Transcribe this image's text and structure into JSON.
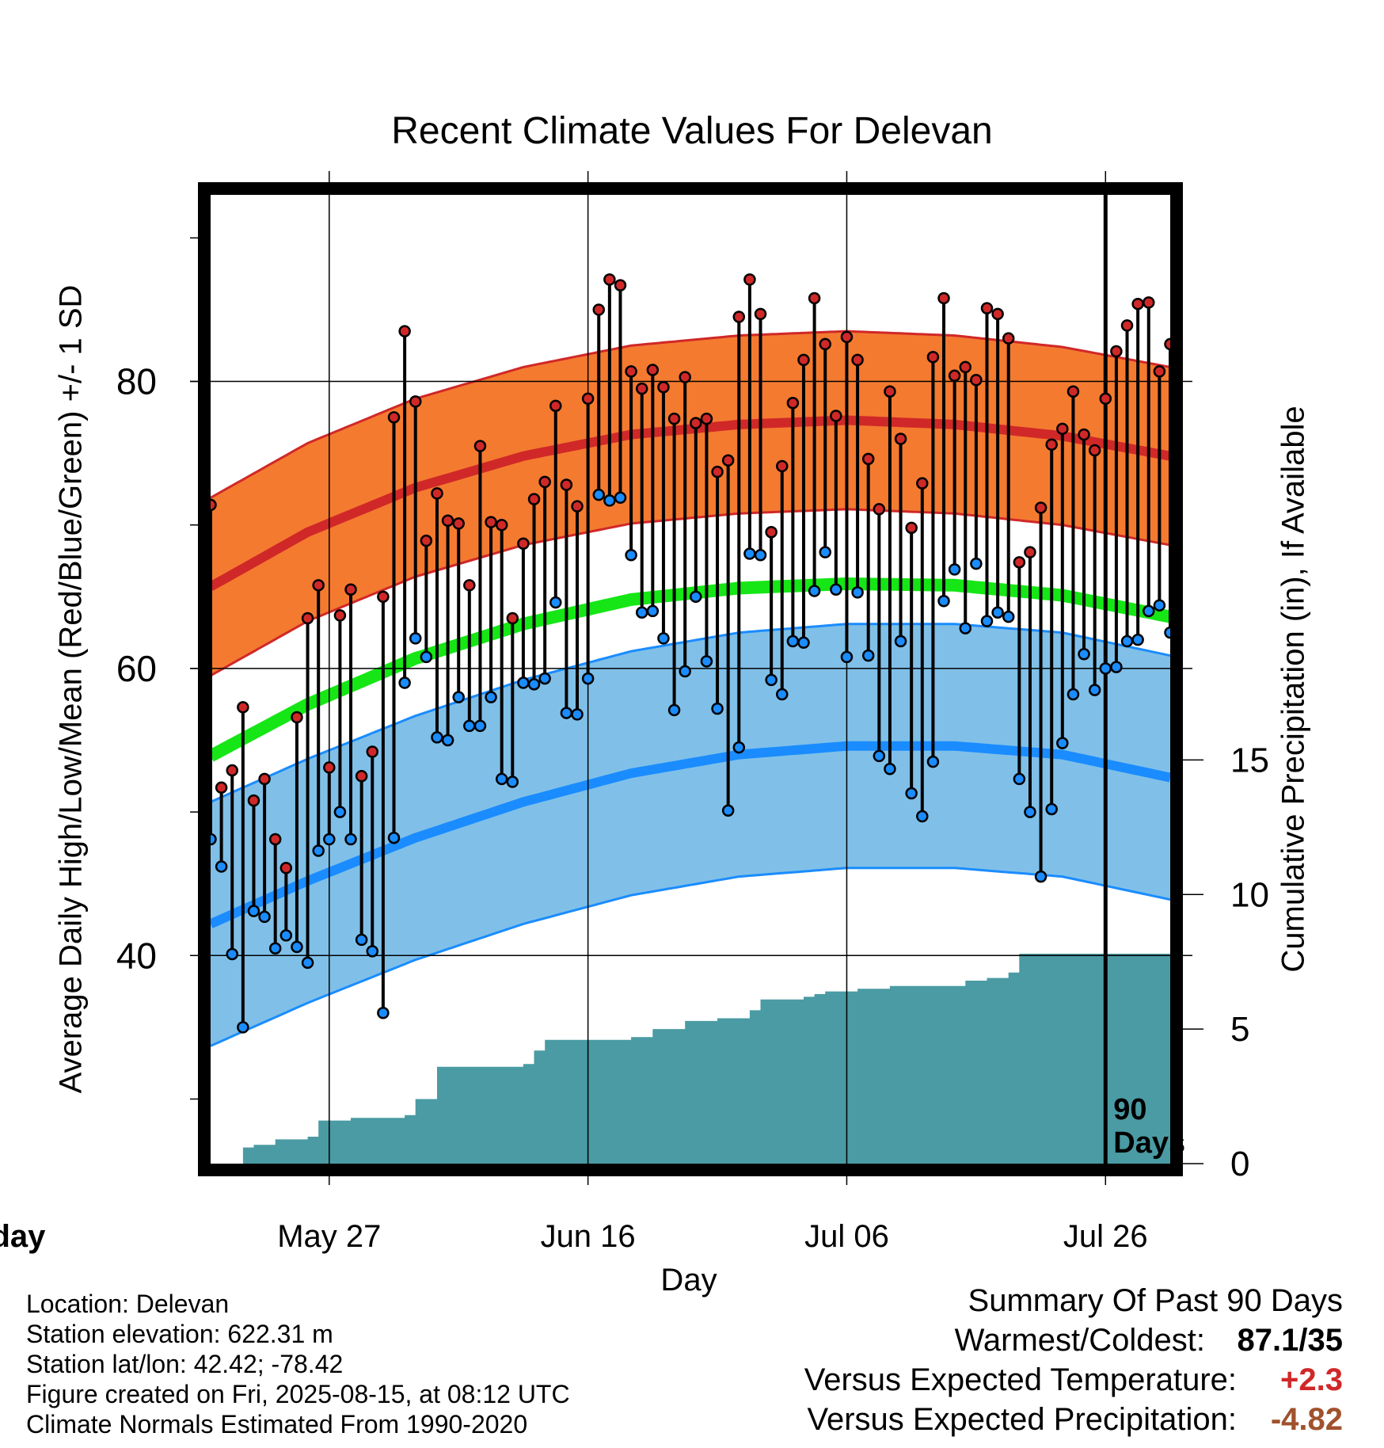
{
  "chart_data": {
    "type": "line",
    "title": "Recent Climate Values For Delevan",
    "xlabel": "Day",
    "ylabel": "Average Daily High/Low/Mean (Red/Blue/Green) +/- 1 SD",
    "y2label": "Cumulative Precipitation (in), If Available",
    "x_ticks": [
      "May 27",
      "Jun 16",
      "Jul 06",
      "Jul 26",
      "Today"
    ],
    "y_ticks": [
      40,
      60,
      80
    ],
    "y2_ticks": [
      0,
      5,
      10,
      15
    ],
    "today_marker": "90 Days",
    "colors": {
      "high_band": "#f47a30",
      "high_mean": "#d02828",
      "low_band": "#80c0e8",
      "low_mean": "#1a8cff",
      "mean": "#16e616",
      "precip": "#4a9ba3",
      "high_dot": "#d02828",
      "low_dot": "#1a8cff"
    },
    "series": [
      {
        "name": "High",
        "x": [
          1,
          2,
          3,
          4,
          5,
          6,
          7,
          8,
          9,
          10,
          11,
          12,
          13,
          14,
          15,
          16,
          17,
          18,
          19,
          20,
          21,
          22,
          23,
          24,
          25,
          26,
          27,
          28,
          29,
          30,
          31,
          32,
          33,
          34,
          35,
          36,
          37,
          38,
          39,
          40,
          41,
          42,
          43,
          44,
          45,
          46,
          47,
          48,
          49,
          50,
          51,
          52,
          53,
          54,
          55,
          56,
          57,
          58,
          59,
          60,
          61,
          62,
          63,
          64,
          65,
          66,
          67,
          68,
          69,
          70,
          71,
          72,
          73,
          74,
          75,
          76,
          77,
          78,
          79,
          80,
          81,
          82,
          83,
          84,
          85,
          86,
          87,
          88,
          89,
          90
        ],
        "values": [
          71.4,
          51.7,
          52.9,
          57.3,
          50.8,
          52.3,
          48.1,
          46.1,
          56.6,
          63.5,
          65.8,
          53.1,
          63.7,
          65.5,
          52.5,
          54.2,
          65.0,
          77.5,
          83.5,
          78.6,
          68.9,
          72.2,
          70.3,
          70.1,
          65.8,
          75.5,
          70.2,
          70.0,
          63.5,
          68.7,
          71.8,
          73.0,
          78.3,
          72.8,
          71.3,
          78.8,
          85.0,
          87.1,
          86.7,
          80.7,
          79.5,
          80.8,
          79.6,
          77.4,
          80.3,
          77.1,
          77.4,
          73.7,
          74.5,
          84.5,
          87.1,
          84.7,
          69.5,
          74.1,
          78.5,
          81.5,
          85.8,
          82.6,
          77.6,
          83.1,
          81.5,
          74.6,
          71.1,
          79.3,
          76.0,
          69.8,
          72.9,
          81.7,
          85.8,
          80.4,
          81.0,
          80.1,
          85.1,
          84.7,
          83.0,
          67.4,
          68.1,
          71.2,
          75.6,
          76.7,
          79.3,
          76.3,
          75.2,
          78.8,
          82.1,
          83.9,
          85.4,
          85.5,
          80.7,
          82.6
        ]
      },
      {
        "name": "Low",
        "x": [
          1,
          2,
          3,
          4,
          5,
          6,
          7,
          8,
          9,
          10,
          11,
          12,
          13,
          14,
          15,
          16,
          17,
          18,
          19,
          20,
          21,
          22,
          23,
          24,
          25,
          26,
          27,
          28,
          29,
          30,
          31,
          32,
          33,
          34,
          35,
          36,
          37,
          38,
          39,
          40,
          41,
          42,
          43,
          44,
          45,
          46,
          47,
          48,
          49,
          50,
          51,
          52,
          53,
          54,
          55,
          56,
          57,
          58,
          59,
          60,
          61,
          62,
          63,
          64,
          65,
          66,
          67,
          68,
          69,
          70,
          71,
          72,
          73,
          74,
          75,
          76,
          77,
          78,
          79,
          80,
          81,
          82,
          83,
          84,
          85,
          86,
          87,
          88,
          89,
          90
        ],
        "values": [
          48.1,
          46.2,
          40.1,
          35.0,
          43.1,
          42.7,
          40.5,
          41.4,
          40.6,
          39.5,
          47.3,
          48.1,
          50.0,
          48.1,
          41.1,
          40.3,
          36.0,
          48.2,
          59.0,
          62.1,
          60.8,
          55.2,
          55.0,
          58.0,
          56.0,
          56.0,
          58.0,
          52.3,
          52.1,
          59.0,
          58.9,
          59.3,
          64.6,
          56.9,
          56.8,
          59.3,
          72.1,
          71.7,
          71.9,
          67.9,
          63.9,
          64.0,
          62.1,
          57.1,
          59.8,
          65.0,
          60.5,
          57.2,
          50.1,
          54.5,
          68.0,
          67.9,
          59.2,
          58.2,
          61.9,
          61.8,
          65.4,
          68.1,
          65.5,
          60.8,
          65.3,
          60.9,
          53.9,
          53.0,
          61.9,
          51.3,
          49.7,
          53.5,
          64.7,
          66.9,
          62.8,
          67.3,
          63.3,
          63.9,
          63.6,
          52.3,
          50.0,
          45.5,
          50.2,
          54.8,
          58.2,
          61.0,
          58.5,
          60.0,
          60.1,
          61.9,
          62.0,
          64.0,
          64.4,
          62.5
        ]
      },
      {
        "name": "Normal High",
        "x": [
          1,
          10,
          20,
          30,
          40,
          50,
          60,
          70,
          80,
          90
        ],
        "values": [
          65.7,
          69.5,
          72.6,
          74.8,
          76.3,
          77.0,
          77.3,
          77.0,
          76.2,
          74.8
        ],
        "sd": 6.2
      },
      {
        "name": "Normal Low",
        "x": [
          1,
          10,
          20,
          30,
          40,
          50,
          60,
          70,
          80,
          90
        ],
        "values": [
          42.2,
          45.2,
          48.2,
          50.7,
          52.7,
          54.0,
          54.6,
          54.6,
          54.0,
          52.4
        ],
        "sd": 8.5
      },
      {
        "name": "Normal Mean",
        "x": [
          1,
          10,
          20,
          30,
          40,
          50,
          60,
          70,
          80,
          90
        ],
        "values": [
          53.9,
          57.5,
          60.7,
          63.1,
          64.8,
          65.6,
          65.9,
          65.8,
          65.1,
          63.6
        ]
      },
      {
        "name": "Cumulative Precipitation",
        "x": [
          1,
          3,
          4,
          5,
          7,
          10,
          11,
          14,
          18,
          19,
          20,
          22,
          30,
          31,
          32,
          35,
          39,
          40,
          42,
          43,
          45,
          46,
          48,
          50,
          51,
          52,
          53,
          56,
          57,
          58,
          59,
          61,
          62,
          63,
          64,
          65,
          66,
          67,
          70,
          71,
          72,
          73,
          75,
          76,
          90
        ],
        "values": [
          0.0,
          0.0,
          0.6,
          0.7,
          0.9,
          1.0,
          1.6,
          1.7,
          1.7,
          1.8,
          2.4,
          3.6,
          3.7,
          4.2,
          4.6,
          4.6,
          4.6,
          4.7,
          5.0,
          5.0,
          5.3,
          5.3,
          5.4,
          5.4,
          5.7,
          6.1,
          6.1,
          6.2,
          6.3,
          6.4,
          6.4,
          6.5,
          6.5,
          6.5,
          6.6,
          6.6,
          6.6,
          6.6,
          6.6,
          6.8,
          6.8,
          6.9,
          7.1,
          7.8,
          7.8
        ]
      }
    ],
    "grid": true,
    "xlim": [
      1,
      90
    ],
    "ylim": [
      25.5,
      93
    ],
    "y2lim": [
      0,
      18
    ]
  },
  "info": {
    "location": "Location: Delevan",
    "elevation": "Station elevation: 622.31 m",
    "latlon": "Station lat/lon: 42.42; -78.42",
    "created": "Figure created on Fri, 2025-08-15, at 08:12 UTC",
    "normals": "Climate Normals Estimated From 1990-2020"
  },
  "summary": {
    "title": "Summary Of Past 90 Days",
    "warmest_label": "Warmest/Coldest:",
    "warmest_value": "87.1/35",
    "temp_label": "Versus Expected Temperature:",
    "temp_value": "+2.3",
    "precip_label": "Versus Expected Precipitation:",
    "precip_value": "-4.82",
    "temp_color": "#d02828",
    "precip_color": "#a0522d"
  }
}
